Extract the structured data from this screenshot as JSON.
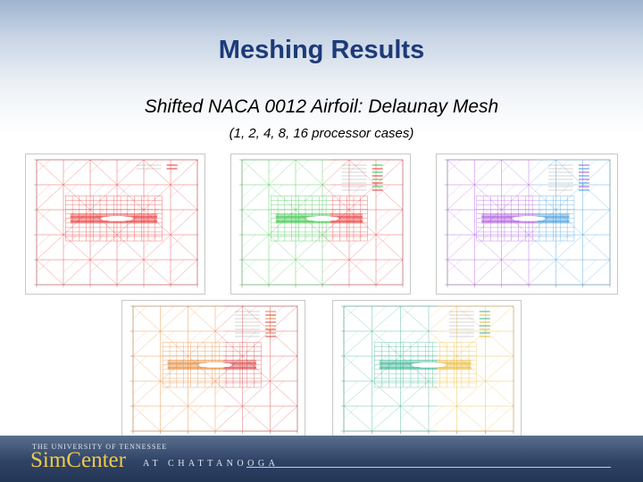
{
  "slide": {
    "title": "Meshing Results",
    "subtitle": "Shifted NACA 0012 Airfoil: Delaunay Mesh",
    "caption": "(1, 2, 4, 8, 16 processor cases)"
  },
  "plots": [
    {
      "name": "mesh-plot-1-processor",
      "colors": [
        "#e52020"
      ]
    },
    {
      "name": "mesh-plot-2-processors",
      "colors": [
        "#22bb33",
        "#e52020"
      ]
    },
    {
      "name": "mesh-plot-4-processors",
      "colors": [
        "#a040d8",
        "#2f8fd8"
      ]
    },
    {
      "name": "mesh-plot-8-processors",
      "colors": [
        "#e07a20",
        "#d43030"
      ]
    },
    {
      "name": "mesh-plot-16-processors",
      "colors": [
        "#22aa88",
        "#e8b020"
      ]
    }
  ],
  "footer": {
    "university": "THE UNIVERSITY OF TENNESSEE",
    "logo": "SimCenter",
    "city": "AT CHATTANOOGA"
  }
}
